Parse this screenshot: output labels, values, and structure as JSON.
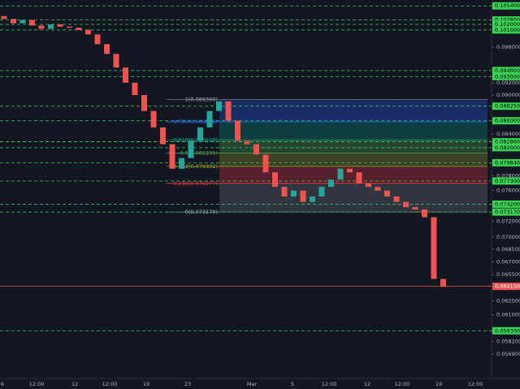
{
  "chart_data": {
    "type": "candlestick",
    "scale": "log",
    "up_color": "#26a69a",
    "down_color": "#ef5350",
    "open": 0.1035,
    "close": [
      0.103,
      0.1022,
      0.1028,
      0.1018,
      0.1012,
      0.102,
      0.1016,
      0.1014,
      0.101,
      0.1002,
      0.0985,
      0.0968,
      0.0945,
      0.092,
      0.09,
      0.0875,
      0.085,
      0.0825,
      0.079,
      0.0805,
      0.083,
      0.085,
      0.0875,
      0.089,
      0.086,
      0.083,
      0.0825,
      0.081,
      0.0785,
      0.0765,
      0.0752,
      0.076,
      0.0745,
      0.0752,
      0.0765,
      0.0775,
      0.079,
      0.0785,
      0.077,
      0.0765,
      0.076,
      0.0752,
      0.0745,
      0.0738,
      0.0735,
      0.0725,
      0.065,
      0.0641
    ],
    "ylim": [
      0.0545,
      0.1065
    ],
    "yticks": [
      {
        "value": 0.098,
        "label": "0.098000"
      },
      {
        "value": 0.092,
        "label": "0.092000"
      },
      {
        "value": 0.09,
        "label": "0.090000"
      },
      {
        "value": 0.084,
        "label": "0.084000"
      },
      {
        "value": 0.078,
        "label": "0.078000"
      },
      {
        "value": 0.076,
        "label": "0.076000"
      },
      {
        "value": 0.072,
        "label": "0.072000"
      },
      {
        "value": 0.07,
        "label": "0.070000"
      },
      {
        "value": 0.0685,
        "label": "0.068500"
      },
      {
        "value": 0.067,
        "label": "0.067000"
      },
      {
        "value": 0.0655,
        "label": "0.065500"
      },
      {
        "value": 0.0625,
        "label": "0.062500"
      },
      {
        "value": 0.061,
        "label": "0.061000"
      },
      {
        "value": 0.0582,
        "label": "0.058200"
      },
      {
        "value": 0.0569,
        "label": "0.056900"
      }
    ],
    "levels_color": "#39d353",
    "levels": [
      {
        "value": 0.1054,
        "label": "0.105400"
      },
      {
        "value": 0.1028,
        "label": "0.102800"
      },
      {
        "value": 0.102,
        "label": "0.102000"
      },
      {
        "value": 0.101,
        "label": "0.101000"
      },
      {
        "value": 0.094,
        "label": "0.094000"
      },
      {
        "value": 0.093,
        "label": "0.093000"
      },
      {
        "value": 0.08825,
        "label": "0.088250"
      },
      {
        "value": 0.086,
        "label": "0.086000"
      },
      {
        "value": 0.08286,
        "label": "0.082860"
      },
      {
        "value": 0.082,
        "label": "0.082000"
      },
      {
        "value": 0.07984,
        "label": "0.079840"
      },
      {
        "value": 0.0773,
        "label": "0.077300"
      },
      {
        "value": 0.0742,
        "label": "0.074200"
      },
      {
        "value": 0.07317,
        "label": "0.073170"
      },
      {
        "value": 0.0593,
        "label": "0.059300"
      }
    ],
    "last_price": {
      "value": 0.06415,
      "label": "0.064150",
      "color": "#ef5350"
    },
    "fib": [
      {
        "value": 0.0893,
        "label": "1(0.089300)",
        "color": "#787b86"
      },
      {
        "value": 0.085848,
        "label": "0.786(0.085848)",
        "color": "#2962ff"
      },
      {
        "value": 0.083138,
        "label": "0.618(0.083138)",
        "color": "#089981"
      },
      {
        "value": 0.081235,
        "label": "0.5(0.081235)",
        "color": "#4caf50"
      },
      {
        "value": 0.079332,
        "label": "0.382(0.079332)",
        "color": "#9aa52a"
      },
      {
        "value": 0.076977,
        "label": "0.236(0.076977)",
        "color": "#f23645"
      },
      {
        "value": 0.07317,
        "label": "0(0.073170)",
        "color": "#787b86"
      }
    ],
    "x_labels": [
      "6",
      "12:00",
      "12",
      "12:00",
      "19",
      "23",
      "Mar",
      "5",
      "12:00",
      "12",
      "12:00",
      "19",
      "12:00"
    ]
  }
}
